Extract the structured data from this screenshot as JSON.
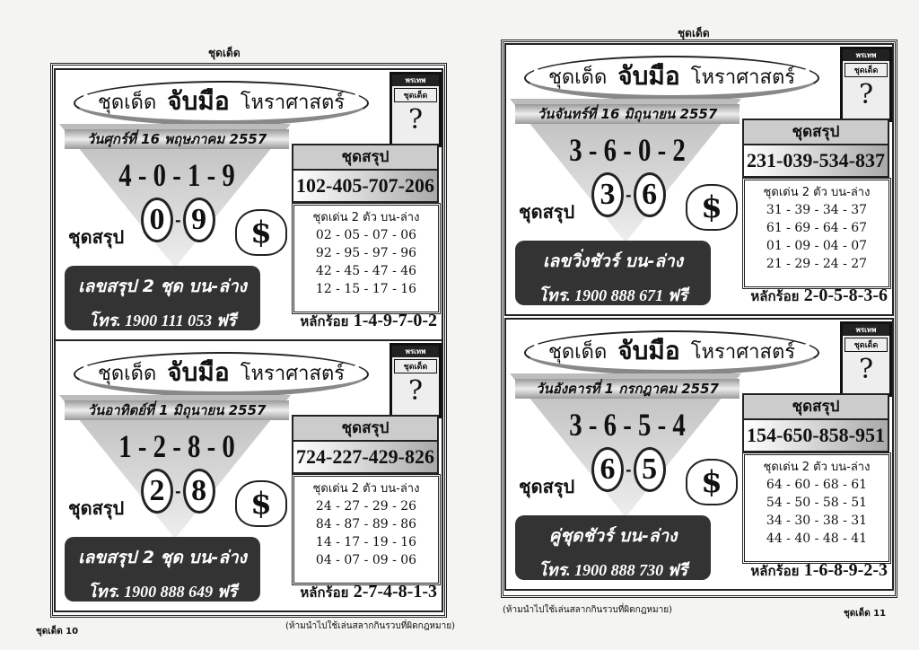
{
  "header": {
    "left": "ชุดเด็ด",
    "right": "ชุดเด็ด"
  },
  "footer": {
    "left_page": "ชุดเด็ด 10",
    "left_note": "(ห้ามนำไปใช้เล่นสลากกินรวบที่ผิดกฎหมาย)",
    "right_note": "(ห้ามนำไปใช้เล่นสลากกินรวบที่ผิดกฎหมาย)",
    "right_page": "ชุดเด็ด 11"
  },
  "panels": [
    {
      "title_a": "ชุดเด็ด",
      "title_b": "จับมือ",
      "title_c": "โหราศาสตร์",
      "cover_brand": "พรเทพ",
      "cover_name": "ชุดเด็ด",
      "cover_q": "?",
      "date": "วันศุกร์ที่ 16 พฤษภาคม 2557",
      "digits": "4 - 0 - 1 - 9",
      "pair": [
        "0",
        "9"
      ],
      "sum_label": "ชุดสรุป",
      "bag": "$",
      "promo": "เลขสรุป 2 ชุด บน-ล่าง",
      "phone": "โทร. 1900 111 053  ฟรี",
      "box_title": "ชุดสรุป",
      "box_number": "102-405-707-206",
      "list_title": "ชุดเด่น 2 ตัว บน-ล่าง",
      "rows": [
        "02 - 05 - 07 - 06",
        "92 - 95 - 97 - 96",
        "42 - 45 - 47 - 46",
        "12 - 15 - 17 - 16"
      ],
      "hundreds_label": "หลักร้อย",
      "hundreds": "1-4-9-7-0-2"
    },
    {
      "title_a": "ชุดเด็ด",
      "title_b": "จับมือ",
      "title_c": "โหราศาสตร์",
      "cover_brand": "พรเทพ",
      "cover_name": "ชุดเด็ด",
      "cover_q": "?",
      "date": "วันอาทิตย์ที่ 1 มิถุนายน 2557",
      "digits": "1 - 2 - 8 - 0",
      "pair": [
        "2",
        "8"
      ],
      "sum_label": "ชุดสรุป",
      "bag": "$",
      "promo": "เลขสรุป 2 ชุด บน-ล่าง",
      "phone": "โทร. 1900 888 649  ฟรี",
      "box_title": "ชุดสรุป",
      "box_number": "724-227-429-826",
      "list_title": "ชุดเด่น 2 ตัว บน-ล่าง",
      "rows": [
        "24 - 27 - 29 - 26",
        "84 - 87 - 89 - 86",
        "14 - 17 - 19 - 16",
        "04 - 07 - 09 - 06"
      ],
      "hundreds_label": "หลักร้อย",
      "hundreds": "2-7-4-8-1-3"
    },
    {
      "title_a": "ชุดเด็ด",
      "title_b": "จับมือ",
      "title_c": "โหราศาสตร์",
      "cover_brand": "พรเทพ",
      "cover_name": "ชุดเด็ด",
      "cover_q": "?",
      "date": "วันจันทร์ที่ 16 มิถุนายน 2557",
      "digits": "3 - 6 - 0 - 2",
      "pair": [
        "3",
        "6"
      ],
      "sum_label": "ชุดสรุป",
      "bag": "$",
      "promo": "เลขวิ่งชัวร์ บน-ล่าง",
      "phone": "โทร. 1900 888 671  ฟรี",
      "box_title": "ชุดสรุป",
      "box_number": "231-039-534-837",
      "list_title": "ชุดเด่น 2 ตัว บน-ล่าง",
      "rows": [
        "31 - 39 - 34 - 37",
        "61 - 69 - 64 - 67",
        "01 - 09 - 04 - 07",
        "21 - 29 - 24 - 27"
      ],
      "hundreds_label": "หลักร้อย",
      "hundreds": "2-0-5-8-3-6"
    },
    {
      "title_a": "ชุดเด็ด",
      "title_b": "จับมือ",
      "title_c": "โหราศาสตร์",
      "cover_brand": "พรเทพ",
      "cover_name": "ชุดเด็ด",
      "cover_q": "?",
      "date": "วันอังคารที่ 1 กรกฎาคม 2557",
      "digits": "3 - 6 - 5 - 4",
      "pair": [
        "6",
        "5"
      ],
      "sum_label": "ชุดสรุป",
      "bag": "$",
      "promo": "คู่ชุดชัวร์ บน-ล่าง",
      "phone": "โทร. 1900 888 730  ฟรี",
      "box_title": "ชุดสรุป",
      "box_number": "154-650-858-951",
      "list_title": "ชุดเด่น 2 ตัว บน-ล่าง",
      "rows": [
        "64 - 60 - 68 - 61",
        "54 - 50 - 58 - 51",
        "34 - 30 - 38 - 31",
        "44 - 40 - 48 - 41"
      ],
      "hundreds_label": "หลักร้อย",
      "hundreds": "1-6-8-9-2-3"
    }
  ]
}
